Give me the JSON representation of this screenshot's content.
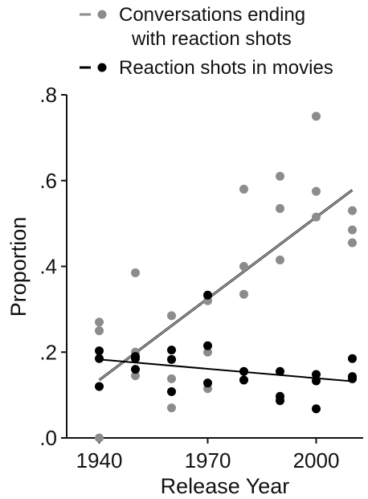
{
  "chart_data": {
    "type": "scatter",
    "xlabel": "Release Year",
    "ylabel": "Proportion",
    "xlim": [
      1931,
      2013
    ],
    "ylim": [
      0,
      0.8
    ],
    "xticks": [
      1940,
      1970,
      2000
    ],
    "xtick_labels": [
      "1940",
      "1970",
      "2000"
    ],
    "yticks": [
      0,
      0.2,
      0.4,
      0.6,
      0.8
    ],
    "ytick_labels": [
      ".0",
      ".2",
      ".4",
      ".6",
      ".8"
    ],
    "grid": false,
    "legend_position": "top",
    "series": [
      {
        "name": "Conversations ending with reaction shots",
        "legend_lines": [
          "Conversations ending",
          "with reaction shots"
        ],
        "color": "#8c8c8c",
        "trend": {
          "x1": 1940,
          "y1": 0.135,
          "x2": 2010,
          "y2": 0.578
        },
        "points": [
          {
            "x": 1940,
            "y": 0.27
          },
          {
            "x": 1940,
            "y": 0.25
          },
          {
            "x": 1940,
            "y": 0.0
          },
          {
            "x": 1950,
            "y": 0.385
          },
          {
            "x": 1950,
            "y": 0.2
          },
          {
            "x": 1950,
            "y": 0.145
          },
          {
            "x": 1960,
            "y": 0.285
          },
          {
            "x": 1960,
            "y": 0.138
          },
          {
            "x": 1960,
            "y": 0.07
          },
          {
            "x": 1970,
            "y": 0.32
          },
          {
            "x": 1970,
            "y": 0.2
          },
          {
            "x": 1970,
            "y": 0.115
          },
          {
            "x": 1980,
            "y": 0.58
          },
          {
            "x": 1980,
            "y": 0.4
          },
          {
            "x": 1980,
            "y": 0.335
          },
          {
            "x": 1990,
            "y": 0.61
          },
          {
            "x": 1990,
            "y": 0.535
          },
          {
            "x": 1990,
            "y": 0.415
          },
          {
            "x": 2000,
            "y": 0.75
          },
          {
            "x": 2000,
            "y": 0.575
          },
          {
            "x": 2000,
            "y": 0.515
          },
          {
            "x": 2010,
            "y": 0.53
          },
          {
            "x": 2010,
            "y": 0.485
          },
          {
            "x": 2010,
            "y": 0.455
          }
        ]
      },
      {
        "name": "Reaction shots in movies",
        "legend_lines": [
          "Reaction shots in movies"
        ],
        "color": "#000000",
        "trend": {
          "x1": 1940,
          "y1": 0.183,
          "x2": 2010,
          "y2": 0.132
        },
        "points": [
          {
            "x": 1940,
            "y": 0.203
          },
          {
            "x": 1940,
            "y": 0.185
          },
          {
            "x": 1940,
            "y": 0.12
          },
          {
            "x": 1950,
            "y": 0.19
          },
          {
            "x": 1950,
            "y": 0.185
          },
          {
            "x": 1950,
            "y": 0.16
          },
          {
            "x": 1960,
            "y": 0.205
          },
          {
            "x": 1960,
            "y": 0.183
          },
          {
            "x": 1960,
            "y": 0.108
          },
          {
            "x": 1970,
            "y": 0.333
          },
          {
            "x": 1970,
            "y": 0.215
          },
          {
            "x": 1970,
            "y": 0.128
          },
          {
            "x": 1980,
            "y": 0.155
          },
          {
            "x": 1980,
            "y": 0.135
          },
          {
            "x": 1990,
            "y": 0.155
          },
          {
            "x": 1990,
            "y": 0.097
          },
          {
            "x": 1990,
            "y": 0.087
          },
          {
            "x": 2000,
            "y": 0.148
          },
          {
            "x": 2000,
            "y": 0.133
          },
          {
            "x": 2000,
            "y": 0.068
          },
          {
            "x": 2010,
            "y": 0.185
          },
          {
            "x": 2010,
            "y": 0.143
          },
          {
            "x": 2010,
            "y": 0.138
          }
        ]
      }
    ]
  }
}
